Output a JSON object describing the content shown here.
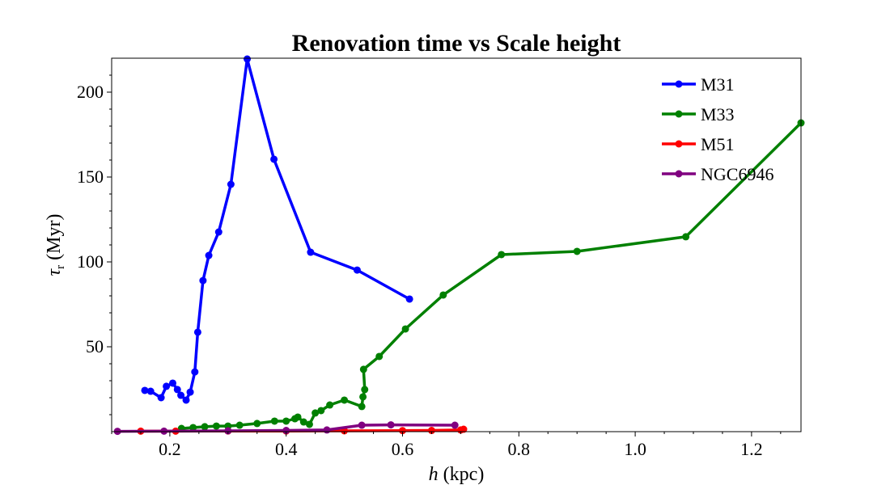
{
  "chart_data": {
    "type": "line",
    "title": "Renovation time vs Scale height",
    "xlabel_main": "h",
    "xlabel_unit": "(kpc)",
    "ylabel_main": "τ",
    "ylabel_sub": "r",
    "ylabel_unit": "(Myr)",
    "xlim": [
      0.1,
      1.285
    ],
    "ylim": [
      0,
      220
    ],
    "xticks": [
      0.2,
      0.4,
      0.6,
      0.8,
      1.0,
      1.2
    ],
    "xtick_labels": [
      "0.2",
      "0.4",
      "0.6",
      "0.8",
      "1.0",
      "1.2"
    ],
    "yticks": [
      50,
      100,
      150,
      200
    ],
    "ytick_labels": [
      "50",
      "100",
      "150",
      "200"
    ],
    "legend_position": "top-right",
    "series": [
      {
        "name": "M31",
        "color": "#0000ff",
        "points": [
          [
            0.157,
            24.3
          ],
          [
            0.167,
            23.8
          ],
          [
            0.185,
            20.0
          ],
          [
            0.194,
            26.7
          ],
          [
            0.205,
            28.6
          ],
          [
            0.213,
            24.8
          ],
          [
            0.219,
            21.4
          ],
          [
            0.228,
            18.6
          ],
          [
            0.235,
            23.3
          ],
          [
            0.243,
            35.2
          ],
          [
            0.248,
            58.6
          ],
          [
            0.257,
            89.0
          ],
          [
            0.267,
            103.8
          ],
          [
            0.284,
            117.6
          ],
          [
            0.305,
            145.7
          ],
          [
            0.333,
            219.5
          ],
          [
            0.379,
            160.5
          ],
          [
            0.442,
            105.7
          ],
          [
            0.522,
            95.2
          ],
          [
            0.612,
            78.1
          ]
        ]
      },
      {
        "name": "M33",
        "color": "#008000",
        "points": [
          [
            0.22,
            1.9
          ],
          [
            0.24,
            2.4
          ],
          [
            0.26,
            2.9
          ],
          [
            0.28,
            3.3
          ],
          [
            0.3,
            3.3
          ],
          [
            0.32,
            3.8
          ],
          [
            0.35,
            4.8
          ],
          [
            0.38,
            6.2
          ],
          [
            0.4,
            6.2
          ],
          [
            0.415,
            7.6
          ],
          [
            0.42,
            8.6
          ],
          [
            0.43,
            5.7
          ],
          [
            0.44,
            4.3
          ],
          [
            0.45,
            11.0
          ],
          [
            0.46,
            12.4
          ],
          [
            0.475,
            15.7
          ],
          [
            0.5,
            18.6
          ],
          [
            0.53,
            14.8
          ],
          [
            0.532,
            20.5
          ],
          [
            0.535,
            24.8
          ],
          [
            0.533,
            36.7
          ],
          [
            0.56,
            44.3
          ],
          [
            0.605,
            60.5
          ],
          [
            0.67,
            80.5
          ],
          [
            0.77,
            104.3
          ],
          [
            0.9,
            106.2
          ],
          [
            1.087,
            114.8
          ],
          [
            1.285,
            181.9
          ]
        ]
      },
      {
        "name": "M51",
        "color": "#ff0000",
        "points": [
          [
            0.15,
            0.3
          ],
          [
            0.21,
            0.3
          ],
          [
            0.3,
            0.4
          ],
          [
            0.4,
            0.4
          ],
          [
            0.5,
            0.5
          ],
          [
            0.6,
            0.6
          ],
          [
            0.65,
            0.7
          ],
          [
            0.7,
            1.0
          ],
          [
            0.705,
            1.4
          ]
        ]
      },
      {
        "name": "NGC6946",
        "color": "#800080",
        "points": [
          [
            0.11,
            0.2
          ],
          [
            0.19,
            0.3
          ],
          [
            0.3,
            0.5
          ],
          [
            0.4,
            0.7
          ],
          [
            0.47,
            1.0
          ],
          [
            0.53,
            3.8
          ],
          [
            0.58,
            4.0
          ],
          [
            0.69,
            3.8
          ]
        ]
      }
    ]
  }
}
